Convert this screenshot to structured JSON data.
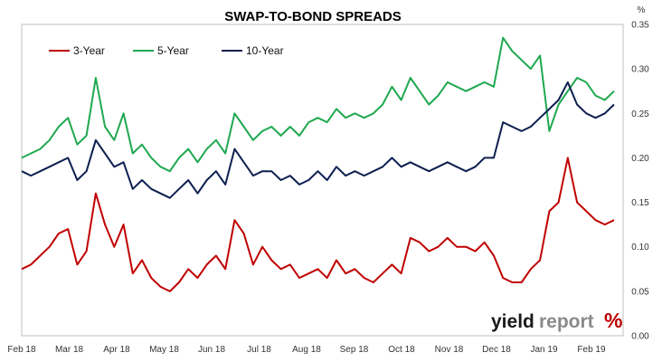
{
  "chart_data": {
    "type": "line",
    "title": "SWAP-TO-BOND SPREADS",
    "unit_label": "%",
    "ylim": [
      0,
      0.35
    ],
    "y_ticks": [
      "0.00",
      "0.05",
      "0.10",
      "0.15",
      "0.20",
      "0.25",
      "0.30",
      "0.35"
    ],
    "x_ticks": [
      "Feb 18",
      "Mar 18",
      "Apr 18",
      "May 18",
      "Jun 18",
      "Jul 18",
      "Aug 18",
      "Sep 18",
      "Oct 18",
      "Nov 18",
      "Dec 18",
      "Jan 19",
      "Feb 19"
    ],
    "grid": false,
    "legend_position": "top-left",
    "series": [
      {
        "name": "3-Year",
        "color": "#c00000",
        "values": [
          0.075,
          0.08,
          0.09,
          0.1,
          0.115,
          0.12,
          0.08,
          0.095,
          0.16,
          0.125,
          0.1,
          0.125,
          0.07,
          0.085,
          0.065,
          0.055,
          0.05,
          0.06,
          0.075,
          0.065,
          0.08,
          0.09,
          0.075,
          0.13,
          0.115,
          0.08,
          0.1,
          0.085,
          0.075,
          0.08,
          0.065,
          0.07,
          0.075,
          0.065,
          0.085,
          0.07,
          0.075,
          0.065,
          0.06,
          0.07,
          0.08,
          0.07,
          0.11,
          0.105,
          0.095,
          0.1,
          0.11,
          0.1,
          0.1,
          0.095,
          0.105,
          0.09,
          0.065,
          0.06,
          0.06,
          0.075,
          0.085,
          0.14,
          0.15,
          0.2,
          0.15,
          0.14,
          0.13,
          0.125,
          0.13
        ],
        "stroke_width": 2
      },
      {
        "name": "5-Year",
        "color": "#1fa84f",
        "values": [
          0.2,
          0.205,
          0.21,
          0.22,
          0.235,
          0.245,
          0.215,
          0.225,
          0.29,
          0.235,
          0.22,
          0.25,
          0.205,
          0.215,
          0.2,
          0.19,
          0.185,
          0.2,
          0.21,
          0.195,
          0.21,
          0.22,
          0.205,
          0.25,
          0.235,
          0.22,
          0.23,
          0.235,
          0.225,
          0.235,
          0.225,
          0.24,
          0.245,
          0.24,
          0.255,
          0.245,
          0.25,
          0.245,
          0.25,
          0.26,
          0.28,
          0.265,
          0.29,
          0.275,
          0.26,
          0.27,
          0.285,
          0.28,
          0.275,
          0.28,
          0.285,
          0.28,
          0.335,
          0.32,
          0.31,
          0.3,
          0.315,
          0.23,
          0.26,
          0.275,
          0.29,
          0.285,
          0.27,
          0.265,
          0.275
        ],
        "stroke_width": 2
      },
      {
        "name": "10-Year",
        "color": "#0d1f4f",
        "values": [
          0.185,
          0.18,
          0.185,
          0.19,
          0.195,
          0.2,
          0.175,
          0.185,
          0.22,
          0.205,
          0.19,
          0.195,
          0.165,
          0.175,
          0.165,
          0.16,
          0.155,
          0.165,
          0.175,
          0.16,
          0.175,
          0.185,
          0.17,
          0.21,
          0.195,
          0.18,
          0.185,
          0.185,
          0.175,
          0.18,
          0.17,
          0.175,
          0.185,
          0.175,
          0.19,
          0.18,
          0.185,
          0.18,
          0.185,
          0.19,
          0.2,
          0.19,
          0.195,
          0.19,
          0.185,
          0.19,
          0.195,
          0.19,
          0.185,
          0.19,
          0.2,
          0.2,
          0.24,
          0.235,
          0.23,
          0.235,
          0.245,
          0.255,
          0.265,
          0.285,
          0.26,
          0.25,
          0.245,
          0.25,
          0.26
        ],
        "stroke_width": 2
      }
    ]
  },
  "logo": {
    "word_main": "yield",
    "word_sub": "report",
    "symbol": "%"
  }
}
